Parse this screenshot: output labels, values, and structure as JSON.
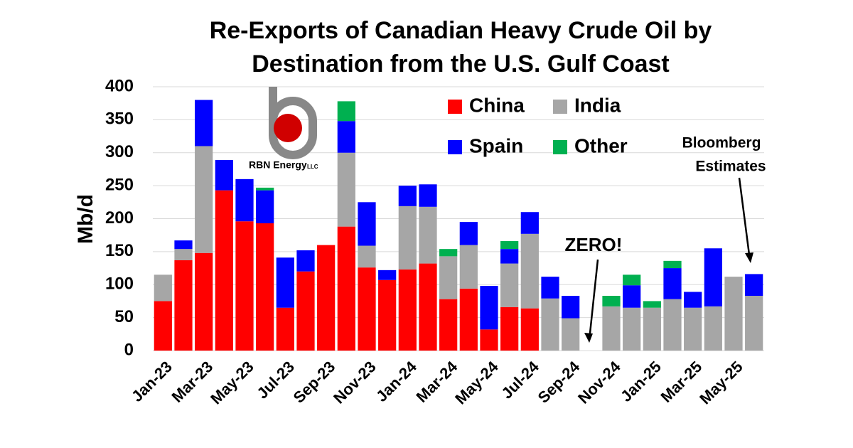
{
  "chart_data": {
    "type": "stacked_bar",
    "title": [
      "Re-Exports of Canadian Heavy Crude Oil by",
      "Destination from the U.S. Gulf Coast"
    ],
    "y_label": "Mb/d",
    "categories": [
      "Jan-23",
      null,
      "Mar-23",
      null,
      "May-23",
      null,
      "Jul-23",
      null,
      "Sep-23",
      null,
      "Nov-23",
      null,
      "Jan-24",
      null,
      "Mar-24",
      null,
      "May-24",
      null,
      "Jul-24",
      null,
      "Sep-24",
      null,
      "Nov-24",
      null,
      "Jan-25",
      null,
      "Mar-25",
      null,
      "May-25",
      null
    ],
    "series": [
      {
        "name": "China",
        "color": "#ff0000",
        "values": [
          75,
          137,
          148,
          243,
          196,
          193,
          65,
          120,
          160,
          188,
          126,
          107,
          123,
          132,
          78,
          94,
          32,
          66,
          64,
          0,
          0,
          0,
          0,
          0,
          0,
          0,
          0,
          0,
          0,
          0
        ]
      },
      {
        "name": "India",
        "color": "#a6a6a6",
        "values": [
          40,
          17,
          162,
          0,
          0,
          0,
          0,
          0,
          0,
          112,
          33,
          0,
          96,
          86,
          65,
          66,
          0,
          66,
          113,
          79,
          49,
          0,
          67,
          65,
          65,
          78,
          65,
          67,
          112,
          83
        ]
      },
      {
        "name": "Spain",
        "color": "#0000ff",
        "values": [
          0,
          13,
          70,
          46,
          64,
          50,
          76,
          32,
          0,
          48,
          66,
          15,
          31,
          34,
          0,
          35,
          66,
          22,
          33,
          33,
          34,
          0,
          0,
          34,
          0,
          47,
          24,
          88,
          0,
          33
        ]
      },
      {
        "name": "Other",
        "color": "#00b050",
        "values": [
          0,
          0,
          0,
          0,
          0,
          4,
          0,
          0,
          0,
          30,
          0,
          0,
          0,
          0,
          11,
          0,
          0,
          12,
          0,
          0,
          0,
          0,
          16,
          16,
          10,
          11,
          0,
          0,
          0,
          0
        ]
      }
    ],
    "ylim": [
      0,
      400
    ],
    "yticks": [
      0,
      50,
      100,
      150,
      200,
      250,
      300,
      350,
      400
    ],
    "grid": true,
    "legend": "top-center",
    "annotations": [
      "ZERO!",
      "Bloomberg",
      "Estimates"
    ],
    "logo": [
      "RBN Energy",
      "LLC"
    ]
  }
}
